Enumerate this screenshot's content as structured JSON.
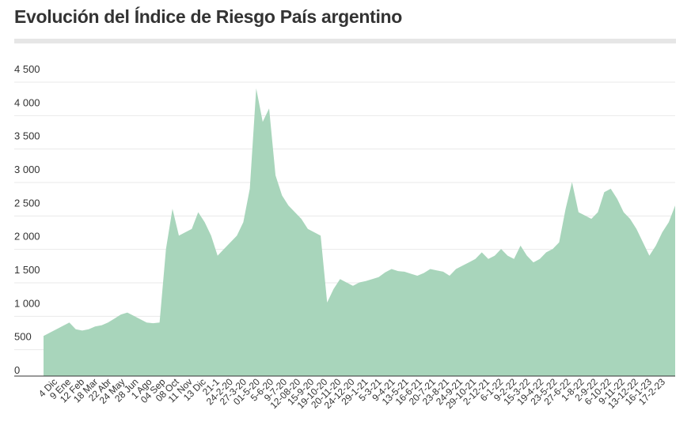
{
  "chart_data": {
    "type": "area",
    "title": "Evolución del Índice de Riesgo País argentino",
    "xlabel": "",
    "ylabel": "",
    "ylim": [
      0,
      4500
    ],
    "y_ticks": [
      0,
      500,
      1000,
      1500,
      2000,
      2500,
      3000,
      3500,
      4000,
      4500
    ],
    "y_tick_labels": [
      "0",
      "500",
      "1 000",
      "1 500",
      "2 000",
      "2 500",
      "3 000",
      "3 500",
      "4 000",
      "4 500"
    ],
    "grid": true,
    "fill_color": "#a8d5bb",
    "x_tick_labels": [
      "4 Dic",
      "9 Ene",
      "12 Feb",
      "18 Mar",
      "22 Abr",
      "24 May",
      "28 Jun",
      "1 Ago",
      "04 Sep",
      "08 Oct",
      "11 Nov",
      "13 Dic",
      "21-1",
      "24-2-20",
      "27-3-20",
      "01-5-20",
      "5-6-20",
      "9-7-20",
      "12-08-20",
      "15-9-20",
      "19-10-20",
      "20-11-20",
      "24-12-20",
      "29-1-21",
      "5-3-21",
      "9-4-21",
      "13-5-21",
      "16-6-21",
      "20-7-21",
      "23-8-21",
      "24-9-21",
      "29-10-21",
      "2-12-21",
      "6-1-22",
      "9-2-22",
      "15-3-22",
      "19-4-22",
      "23-5-22",
      "27-6-22",
      "1-8-22",
      "2-9-22",
      "6-10-22",
      "9-11-22",
      "13-12-22",
      "16-1-23",
      "17-2-23"
    ],
    "series": [
      {
        "values": [
          600,
          650,
          700,
          750,
          800,
          700,
          680,
          700,
          740,
          760,
          800,
          860,
          920,
          950,
          900,
          850,
          800,
          790,
          800,
          1900,
          2500,
          2100,
          2150,
          2200,
          2450,
          2300,
          2100,
          1800,
          1900,
          2000,
          2100,
          2300,
          2800,
          4300,
          3800,
          4000,
          3000,
          2700,
          2550,
          2450,
          2350,
          2200,
          2150,
          2100,
          1100,
          1300,
          1450,
          1400,
          1350,
          1400,
          1420,
          1450,
          1480,
          1550,
          1600,
          1570,
          1560,
          1530,
          1500,
          1540,
          1600,
          1580,
          1560,
          1500,
          1600,
          1650,
          1700,
          1750,
          1850,
          1750,
          1800,
          1900,
          1800,
          1750,
          1950,
          1800,
          1700,
          1750,
          1850,
          1900,
          2000,
          2500,
          2900,
          2450,
          2400,
          2350,
          2450,
          2750,
          2800,
          2650,
          2450,
          2350,
          2200,
          2000,
          1800,
          1950,
          2150,
          2300,
          2550
        ]
      }
    ]
  }
}
